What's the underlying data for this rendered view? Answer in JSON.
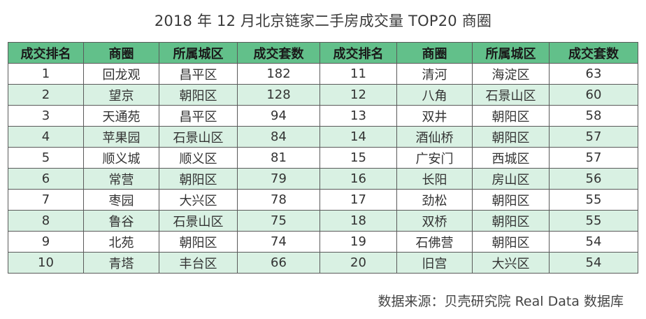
{
  "title": "2018 年 12 月北京链家二手房成交量 TOP20 商圈",
  "source": "数据来源：贝壳研究院 Real Data 数据库",
  "colors": {
    "header_bg": "#62c08a",
    "alt_row_bg": "#d9f1e3"
  },
  "chart_data": {
    "type": "table",
    "title": "2018 年 12 月北京链家二手房成交量 TOP20 商圈",
    "columns": [
      "成交排名",
      "商圈",
      "所属城区",
      "成交套数"
    ],
    "rows": [
      {
        "rank": "1",
        "area": "回龙观",
        "district": "昌平区",
        "count": "182"
      },
      {
        "rank": "2",
        "area": "望京",
        "district": "朝阳区",
        "count": "128"
      },
      {
        "rank": "3",
        "area": "天通苑",
        "district": "昌平区",
        "count": "94"
      },
      {
        "rank": "4",
        "area": "苹果园",
        "district": "石景山区",
        "count": "84"
      },
      {
        "rank": "5",
        "area": "顺义城",
        "district": "顺义区",
        "count": "81"
      },
      {
        "rank": "6",
        "area": "常营",
        "district": "朝阳区",
        "count": "79"
      },
      {
        "rank": "7",
        "area": "枣园",
        "district": "大兴区",
        "count": "78"
      },
      {
        "rank": "8",
        "area": "鲁谷",
        "district": "石景山区",
        "count": "75"
      },
      {
        "rank": "9",
        "area": "北苑",
        "district": "朝阳区",
        "count": "74"
      },
      {
        "rank": "10",
        "area": "青塔",
        "district": "丰台区",
        "count": "66"
      },
      {
        "rank": "11",
        "area": "清河",
        "district": "海淀区",
        "count": "63"
      },
      {
        "rank": "12",
        "area": "八角",
        "district": "石景山区",
        "count": "60"
      },
      {
        "rank": "13",
        "area": "双井",
        "district": "朝阳区",
        "count": "58"
      },
      {
        "rank": "14",
        "area": "酒仙桥",
        "district": "朝阳区",
        "count": "57"
      },
      {
        "rank": "15",
        "area": "广安门",
        "district": "西城区",
        "count": "57"
      },
      {
        "rank": "16",
        "area": "长阳",
        "district": "房山区",
        "count": "56"
      },
      {
        "rank": "17",
        "area": "劲松",
        "district": "朝阳区",
        "count": "55"
      },
      {
        "rank": "18",
        "area": "双桥",
        "district": "朝阳区",
        "count": "55"
      },
      {
        "rank": "19",
        "area": "石佛营",
        "district": "朝阳区",
        "count": "54"
      },
      {
        "rank": "20",
        "area": "旧宫",
        "district": "大兴区",
        "count": "54"
      }
    ]
  }
}
